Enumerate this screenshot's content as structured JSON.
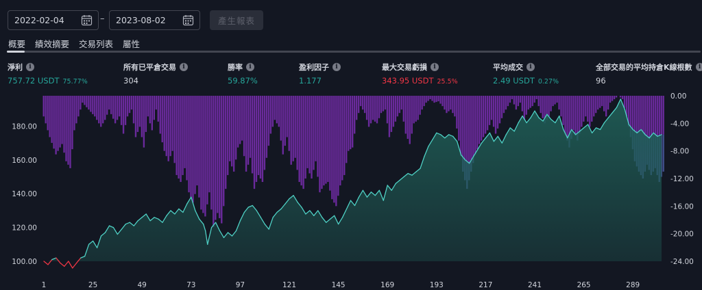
{
  "filters": {
    "start_date": "2022-02-04",
    "end_date": "2023-08-02",
    "separator": "–",
    "generate_label": "產生報表"
  },
  "tabs": [
    {
      "label": "概要",
      "active": true
    },
    {
      "label": "績效摘要",
      "active": false
    },
    {
      "label": "交易列表",
      "active": false
    },
    {
      "label": "屬性",
      "active": false
    }
  ],
  "stats": [
    {
      "label": "淨利",
      "value": "757.72 USDT",
      "sub": "75.77%",
      "tone": "pos"
    },
    {
      "label": "所有已平倉交易",
      "value": "304",
      "sub": "",
      "tone": "neutral"
    },
    {
      "label": "勝率",
      "value": "59.87%",
      "sub": "",
      "tone": "pos"
    },
    {
      "label": "盈利因子",
      "value": "1.177",
      "sub": "",
      "tone": "pos"
    },
    {
      "label": "最大交易虧損",
      "value": "343.95 USDT",
      "sub": "25.5%",
      "tone": "neg"
    },
    {
      "label": "平均成交",
      "value": "2.49 USDT",
      "sub": "0.27%",
      "tone": "pos"
    },
    {
      "label": "全部交易的平均持倉K線根數",
      "value": "96",
      "sub": "",
      "tone": "neutral"
    }
  ],
  "info_icon_glyph": "i",
  "chart_data": {
    "type": "area",
    "x_ticks": [
      "1",
      "25",
      "49",
      "73",
      "97",
      "121",
      "145",
      "169",
      "193",
      "217",
      "241",
      "265",
      "289"
    ],
    "y_left_ticks": [
      "100.00",
      "120.00",
      "140.00",
      "160.00",
      "180.00"
    ],
    "y_right_ticks": [
      "0.00",
      "-4.00",
      "-8.00",
      "-12.00",
      "-16.00",
      "-20.00",
      "-24.00"
    ],
    "y_left_range": [
      100,
      198
    ],
    "y_right_range": [
      0,
      -24
    ],
    "x_range": [
      1,
      304
    ],
    "colors": {
      "equity_line": "#4fd1c5",
      "equity_fill": "#1f5c55",
      "equity_below_start": "#f23645",
      "drawdown_bar": "#6a2a9c",
      "drawdown_bar_overlap": "#4a5aa0"
    },
    "series": [
      {
        "kind": "equity",
        "points": [
          [
            1,
            100
          ],
          [
            3,
            98
          ],
          [
            5,
            101
          ],
          [
            7,
            102
          ],
          [
            9,
            99
          ],
          [
            11,
            97
          ],
          [
            13,
            100
          ],
          [
            15,
            96
          ],
          [
            17,
            99
          ],
          [
            19,
            102
          ],
          [
            21,
            103
          ],
          [
            23,
            110
          ],
          [
            25,
            112
          ],
          [
            27,
            108
          ],
          [
            29,
            115
          ],
          [
            31,
            117
          ],
          [
            33,
            121
          ],
          [
            35,
            120
          ],
          [
            37,
            116
          ],
          [
            39,
            119
          ],
          [
            41,
            122
          ],
          [
            43,
            123
          ],
          [
            45,
            121
          ],
          [
            47,
            124
          ],
          [
            49,
            126
          ],
          [
            51,
            128
          ],
          [
            53,
            124
          ],
          [
            55,
            126
          ],
          [
            57,
            125
          ],
          [
            59,
            123
          ],
          [
            61,
            127
          ],
          [
            63,
            130
          ],
          [
            65,
            128
          ],
          [
            67,
            131
          ],
          [
            69,
            129
          ],
          [
            71,
            134
          ],
          [
            73,
            138
          ],
          [
            75,
            130
          ],
          [
            77,
            125
          ],
          [
            79,
            122
          ],
          [
            80,
            118
          ],
          [
            81,
            110
          ],
          [
            83,
            120
          ],
          [
            85,
            123
          ],
          [
            87,
            118
          ],
          [
            89,
            114
          ],
          [
            91,
            117
          ],
          [
            93,
            115
          ],
          [
            95,
            118
          ],
          [
            97,
            124
          ],
          [
            99,
            129
          ],
          [
            101,
            132
          ],
          [
            103,
            133
          ],
          [
            105,
            130
          ],
          [
            107,
            126
          ],
          [
            109,
            122
          ],
          [
            111,
            119
          ],
          [
            113,
            126
          ],
          [
            115,
            129
          ],
          [
            117,
            131
          ],
          [
            119,
            134
          ],
          [
            121,
            137
          ],
          [
            123,
            139
          ],
          [
            125,
            135
          ],
          [
            127,
            132
          ],
          [
            129,
            128
          ],
          [
            131,
            130
          ],
          [
            133,
            127
          ],
          [
            135,
            130
          ],
          [
            137,
            126
          ],
          [
            139,
            123
          ],
          [
            141,
            125
          ],
          [
            143,
            127
          ],
          [
            145,
            122
          ],
          [
            147,
            126
          ],
          [
            149,
            131
          ],
          [
            151,
            136
          ],
          [
            153,
            133
          ],
          [
            155,
            138
          ],
          [
            157,
            142
          ],
          [
            159,
            138
          ],
          [
            161,
            141
          ],
          [
            163,
            139
          ],
          [
            165,
            142
          ],
          [
            167,
            136
          ],
          [
            169,
            145
          ],
          [
            171,
            142
          ],
          [
            173,
            146
          ],
          [
            175,
            148
          ],
          [
            177,
            150
          ],
          [
            179,
            152
          ],
          [
            181,
            151
          ],
          [
            183,
            153
          ],
          [
            185,
            155
          ],
          [
            187,
            162
          ],
          [
            189,
            168
          ],
          [
            191,
            172
          ],
          [
            193,
            176
          ],
          [
            195,
            175
          ],
          [
            197,
            173
          ],
          [
            199,
            175
          ],
          [
            201,
            174
          ],
          [
            203,
            171
          ],
          [
            205,
            163
          ],
          [
            207,
            160
          ],
          [
            209,
            158
          ],
          [
            211,
            162
          ],
          [
            213,
            166
          ],
          [
            215,
            170
          ],
          [
            217,
            173
          ],
          [
            219,
            176
          ],
          [
            221,
            171
          ],
          [
            223,
            174
          ],
          [
            225,
            170
          ],
          [
            227,
            175
          ],
          [
            229,
            179
          ],
          [
            231,
            177
          ],
          [
            233,
            182
          ],
          [
            235,
            186
          ],
          [
            237,
            182
          ],
          [
            239,
            185
          ],
          [
            241,
            189
          ],
          [
            243,
            185
          ],
          [
            245,
            183
          ],
          [
            247,
            187
          ],
          [
            249,
            184
          ],
          [
            251,
            182
          ],
          [
            253,
            186
          ],
          [
            255,
            178
          ],
          [
            257,
            173
          ],
          [
            259,
            178
          ],
          [
            261,
            175
          ],
          [
            263,
            177
          ],
          [
            265,
            179
          ],
          [
            267,
            181
          ],
          [
            269,
            176
          ],
          [
            271,
            179
          ],
          [
            273,
            178
          ],
          [
            275,
            182
          ],
          [
            277,
            185
          ],
          [
            279,
            188
          ],
          [
            281,
            191
          ],
          [
            283,
            196
          ],
          [
            285,
            190
          ],
          [
            287,
            181
          ],
          [
            289,
            178
          ],
          [
            291,
            176
          ],
          [
            293,
            178
          ],
          [
            295,
            175
          ],
          [
            297,
            173
          ],
          [
            299,
            176
          ],
          [
            301,
            174
          ],
          [
            303,
            175
          ]
        ]
      },
      {
        "kind": "drawdown",
        "points": [
          [
            1,
            -3.0
          ],
          [
            4,
            -6.0
          ],
          [
            7,
            -8.5
          ],
          [
            10,
            -7.0
          ],
          [
            12,
            -9.5
          ],
          [
            14,
            -10.5
          ],
          [
            16,
            -5.0
          ],
          [
            18,
            -3.0
          ],
          [
            20,
            -1.0
          ],
          [
            23,
            -2.0
          ],
          [
            26,
            -3.0
          ],
          [
            29,
            -4.5
          ],
          [
            31,
            -3.5
          ],
          [
            33,
            -2.0
          ],
          [
            36,
            -4.0
          ],
          [
            38,
            -3.0
          ],
          [
            40,
            -5.5
          ],
          [
            42,
            -3.0
          ],
          [
            44,
            -2.0
          ],
          [
            46,
            -6.0
          ],
          [
            48,
            -4.5
          ],
          [
            50,
            -7.5
          ],
          [
            52,
            -3.0
          ],
          [
            54,
            -5.0
          ],
          [
            56,
            -2.0
          ],
          [
            58,
            -5.5
          ],
          [
            60,
            -8.0
          ],
          [
            62,
            -9.5
          ],
          [
            64,
            -8.0
          ],
          [
            66,
            -11.5
          ],
          [
            68,
            -12.5
          ],
          [
            70,
            -10.5
          ],
          [
            72,
            -14.0
          ],
          [
            74,
            -15.5
          ],
          [
            76,
            -13.0
          ],
          [
            78,
            -16.5
          ],
          [
            80,
            -17.5
          ],
          [
            82,
            -14.0
          ],
          [
            84,
            -19.0
          ],
          [
            86,
            -17.0
          ],
          [
            88,
            -18.5
          ],
          [
            90,
            -13.5
          ],
          [
            92,
            -9.5
          ],
          [
            94,
            -11.0
          ],
          [
            96,
            -7.5
          ],
          [
            98,
            -6.5
          ],
          [
            100,
            -11.0
          ],
          [
            102,
            -9.0
          ],
          [
            104,
            -13.5
          ],
          [
            106,
            -11.5
          ],
          [
            108,
            -12.5
          ],
          [
            110,
            -9.0
          ],
          [
            112,
            -5.5
          ],
          [
            114,
            -3.5
          ],
          [
            116,
            -4.5
          ],
          [
            118,
            -8.5
          ],
          [
            120,
            -6.0
          ],
          [
            122,
            -10.0
          ],
          [
            124,
            -9.0
          ],
          [
            126,
            -12.5
          ],
          [
            128,
            -13.5
          ],
          [
            130,
            -10.5
          ],
          [
            132,
            -12.0
          ],
          [
            134,
            -9.5
          ],
          [
            136,
            -14.0
          ],
          [
            138,
            -13.0
          ],
          [
            140,
            -12.5
          ],
          [
            142,
            -15.0
          ],
          [
            144,
            -16.0
          ],
          [
            146,
            -13.0
          ],
          [
            148,
            -11.5
          ],
          [
            150,
            -8.0
          ],
          [
            152,
            -7.5
          ],
          [
            154,
            -3.5
          ],
          [
            156,
            -1.5
          ],
          [
            158,
            -2.5
          ],
          [
            160,
            -4.5
          ],
          [
            162,
            -3.5
          ],
          [
            164,
            -4.0
          ],
          [
            166,
            -2.5
          ],
          [
            168,
            -2.0
          ],
          [
            170,
            -6.0
          ],
          [
            172,
            -4.5
          ],
          [
            174,
            -3.0
          ],
          [
            176,
            -2.0
          ],
          [
            178,
            -5.5
          ],
          [
            180,
            -7.0
          ],
          [
            182,
            -4.0
          ],
          [
            184,
            -3.5
          ],
          [
            186,
            -2.0
          ],
          [
            188,
            -1.0
          ],
          [
            190,
            -0.5
          ],
          [
            192,
            -1.0
          ],
          [
            194,
            -0.8
          ],
          [
            196,
            -1.5
          ],
          [
            198,
            -2.5
          ],
          [
            200,
            -2.0
          ],
          [
            202,
            -3.0
          ],
          [
            204,
            -6.5
          ],
          [
            206,
            -11.0
          ],
          [
            208,
            -13.5
          ],
          [
            210,
            -11.0
          ],
          [
            212,
            -8.5
          ],
          [
            214,
            -7.0
          ],
          [
            216,
            -6.0
          ],
          [
            218,
            -5.0
          ],
          [
            220,
            -3.5
          ],
          [
            222,
            -5.5
          ],
          [
            224,
            -4.0
          ],
          [
            226,
            -2.5
          ],
          [
            228,
            -1.5
          ],
          [
            230,
            -0.5
          ],
          [
            232,
            -2.0
          ],
          [
            234,
            -1.0
          ],
          [
            236,
            -3.5
          ],
          [
            238,
            -2.0
          ],
          [
            240,
            -1.5
          ],
          [
            242,
            -0.5
          ],
          [
            244,
            -2.5
          ],
          [
            246,
            -4.0
          ],
          [
            248,
            -3.0
          ],
          [
            250,
            -1.5
          ],
          [
            252,
            -1.0
          ],
          [
            254,
            -3.0
          ],
          [
            256,
            -5.5
          ],
          [
            258,
            -7.5
          ],
          [
            260,
            -5.0
          ],
          [
            262,
            -6.5
          ],
          [
            264,
            -4.5
          ],
          [
            266,
            -3.0
          ],
          [
            268,
            -4.5
          ],
          [
            270,
            -3.0
          ],
          [
            272,
            -2.0
          ],
          [
            274,
            -1.5
          ],
          [
            276,
            -3.0
          ],
          [
            278,
            -1.0
          ],
          [
            280,
            -0.5
          ],
          [
            282,
            0.0
          ],
          [
            284,
            -0.5
          ],
          [
            286,
            -3.0
          ],
          [
            288,
            -6.0
          ],
          [
            290,
            -9.5
          ],
          [
            292,
            -11.0
          ],
          [
            294,
            -12.0
          ],
          [
            296,
            -10.0
          ],
          [
            298,
            -11.5
          ],
          [
            300,
            -10.5
          ],
          [
            302,
            -12.5
          ],
          [
            304,
            -11.0
          ]
        ]
      }
    ]
  }
}
